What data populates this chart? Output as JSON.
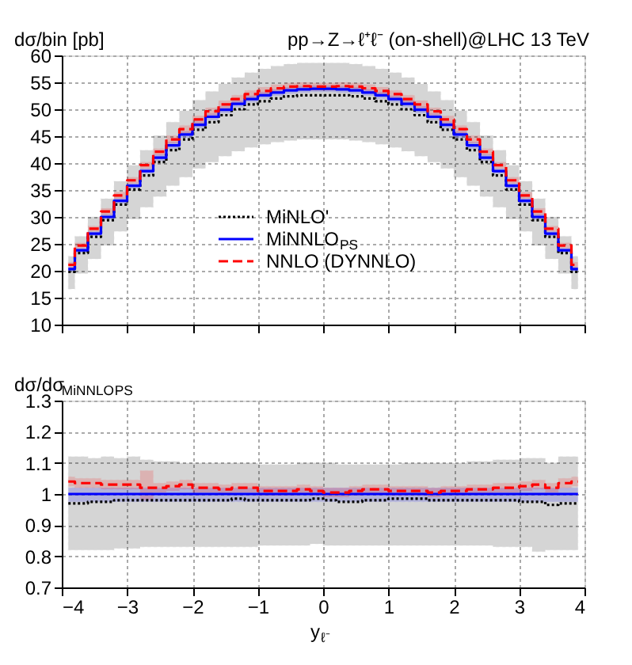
{
  "chart_data": [
    {
      "type": "step",
      "title": "pp→Z→ℓ⁺ℓ⁻ (on-shell)@LHC 13 TeV",
      "ylabel": "dσ/bin [pb]",
      "x": [
        -3.9,
        -3.7,
        -3.5,
        -3.3,
        -3.1,
        -2.9,
        -2.7,
        -2.5,
        -2.3,
        -2.1,
        -1.9,
        -1.7,
        -1.5,
        -1.3,
        -1.1,
        -0.9,
        -0.7,
        -0.5,
        -0.3,
        -0.1,
        0.1,
        0.3,
        0.5,
        0.7,
        0.9,
        1.1,
        1.3,
        1.5,
        1.7,
        1.9,
        2.1,
        2.3,
        2.5,
        2.7,
        2.9,
        3.1,
        3.3,
        3.5,
        3.7,
        3.9
      ],
      "xlim": [
        -4,
        4
      ],
      "xticks": [
        -4,
        -3,
        -2,
        -1,
        0,
        1,
        2,
        3,
        4
      ],
      "ylim": [
        10,
        60
      ],
      "yticks": [
        10,
        15,
        20,
        25,
        30,
        35,
        40,
        45,
        50,
        55,
        60
      ],
      "grid": true,
      "tick_labels": "y",
      "legend": "center",
      "marker": "none",
      "series": [
        {
          "name": "MiNLO'",
          "color": "#000000",
          "line_style": "dotted",
          "values": [
            19.8,
            23.3,
            26.3,
            29.4,
            32.3,
            35.1,
            37.7,
            40.2,
            42.4,
            44.4,
            46.2,
            47.6,
            48.9,
            50.0,
            50.9,
            51.5,
            52.0,
            52.4,
            52.6,
            52.6,
            52.6,
            52.6,
            52.4,
            52.0,
            51.5,
            50.9,
            50.0,
            48.9,
            47.6,
            46.2,
            44.4,
            42.4,
            40.2,
            37.7,
            35.1,
            32.3,
            29.4,
            26.3,
            23.3,
            19.8
          ],
          "lower": [
            16.6,
            19.5,
            22.2,
            24.7,
            27.3,
            29.6,
            31.8,
            33.8,
            35.8,
            37.4,
            39.0,
            40.2,
            41.3,
            42.2,
            42.9,
            43.5,
            43.9,
            44.2,
            44.4,
            44.4,
            44.4,
            44.4,
            44.2,
            43.9,
            43.5,
            42.9,
            42.2,
            41.3,
            40.2,
            39.0,
            37.4,
            35.8,
            33.8,
            31.8,
            29.6,
            27.3,
            24.7,
            22.2,
            19.5,
            16.6
          ],
          "upper": [
            22.7,
            26.4,
            30.0,
            33.4,
            36.6,
            39.6,
            42.4,
            45.1,
            47.6,
            49.7,
            51.7,
            53.3,
            54.7,
            55.9,
            56.8,
            57.5,
            58.0,
            58.4,
            58.6,
            58.6,
            58.6,
            58.6,
            58.4,
            58.0,
            57.5,
            56.8,
            55.9,
            54.7,
            53.3,
            51.7,
            49.7,
            47.6,
            45.1,
            42.4,
            39.6,
            36.6,
            33.4,
            30.0,
            26.4,
            22.7
          ]
        },
        {
          "name": "MiNNLO$_{PS}$",
          "color": "#0000ff",
          "line_style": "solid",
          "values": [
            20.3,
            23.8,
            26.9,
            30.0,
            33.0,
            35.8,
            38.5,
            41.0,
            43.3,
            45.3,
            47.1,
            48.6,
            49.9,
            51.0,
            51.9,
            52.6,
            53.1,
            53.5,
            53.7,
            53.8,
            53.8,
            53.7,
            53.5,
            53.1,
            52.6,
            51.9,
            51.0,
            49.9,
            48.6,
            47.1,
            45.3,
            43.3,
            41.0,
            38.5,
            35.8,
            33.0,
            30.0,
            26.9,
            23.8,
            20.3
          ],
          "lower": [
            19.9,
            23.4,
            26.5,
            29.5,
            32.5,
            35.3,
            38.0,
            40.4,
            42.7,
            44.7,
            46.5,
            48.0,
            49.3,
            50.4,
            51.3,
            52.0,
            52.5,
            52.9,
            53.1,
            53.2,
            53.2,
            53.1,
            52.9,
            52.5,
            52.0,
            51.3,
            50.4,
            49.3,
            48.0,
            46.5,
            44.7,
            42.7,
            40.4,
            38.0,
            35.3,
            32.5,
            29.5,
            26.5,
            23.4,
            19.9
          ],
          "upper": [
            20.7,
            24.2,
            27.3,
            30.5,
            33.5,
            36.3,
            39.0,
            41.6,
            43.9,
            45.9,
            47.7,
            49.2,
            50.5,
            51.6,
            52.5,
            53.2,
            53.7,
            54.1,
            54.3,
            54.4,
            54.4,
            54.3,
            54.1,
            53.7,
            53.2,
            52.5,
            51.6,
            50.5,
            49.2,
            47.7,
            45.9,
            43.9,
            41.6,
            39.0,
            36.3,
            33.5,
            30.5,
            27.3,
            24.2,
            20.7
          ]
        },
        {
          "name": "NNLO (DYNNLO)",
          "color": "#ff0000",
          "line_style": "dashed",
          "values": [
            21.1,
            24.7,
            27.8,
            31.0,
            34.0,
            36.8,
            39.6,
            42.1,
            44.4,
            46.3,
            48.1,
            49.6,
            50.9,
            51.9,
            52.8,
            53.4,
            53.9,
            54.2,
            54.3,
            54.2,
            54.2,
            54.3,
            54.2,
            53.9,
            53.4,
            52.8,
            51.9,
            50.9,
            49.6,
            48.1,
            46.3,
            44.4,
            42.1,
            39.6,
            36.8,
            34.0,
            31.0,
            27.8,
            24.7,
            21.1
          ],
          "lower": [
            20.6,
            24.2,
            27.3,
            30.4,
            33.4,
            36.2,
            39.0,
            41.5,
            43.7,
            45.6,
            47.4,
            48.9,
            50.2,
            51.2,
            52.1,
            52.7,
            53.2,
            53.5,
            53.6,
            53.5,
            53.5,
            53.6,
            53.5,
            53.2,
            52.7,
            52.1,
            51.2,
            50.2,
            48.9,
            47.4,
            45.6,
            43.7,
            41.5,
            39.0,
            36.2,
            33.4,
            30.4,
            27.3,
            24.2,
            20.6
          ],
          "upper": [
            21.6,
            25.2,
            28.3,
            31.6,
            34.6,
            37.4,
            40.2,
            42.7,
            45.1,
            47.0,
            48.8,
            50.3,
            51.6,
            52.6,
            53.5,
            54.1,
            54.6,
            54.9,
            55.0,
            54.9,
            54.9,
            55.0,
            54.9,
            54.6,
            54.1,
            53.5,
            52.6,
            51.6,
            50.3,
            48.8,
            47.0,
            45.1,
            42.7,
            40.2,
            37.4,
            34.6,
            31.6,
            28.3,
            25.2,
            21.6
          ]
        }
      ]
    },
    {
      "type": "step",
      "ylabel": "dσ/dσ$_{MiNNLO}$$_{PS}$",
      "xlabel": "y$_{ℓ⁻}$",
      "x": [
        -3.9,
        -3.7,
        -3.5,
        -3.3,
        -3.1,
        -2.9,
        -2.7,
        -2.5,
        -2.3,
        -2.1,
        -1.9,
        -1.7,
        -1.5,
        -1.3,
        -1.1,
        -0.9,
        -0.7,
        -0.5,
        -0.3,
        -0.1,
        0.1,
        0.3,
        0.5,
        0.7,
        0.9,
        1.1,
        1.3,
        1.5,
        1.7,
        1.9,
        2.1,
        2.3,
        2.5,
        2.7,
        2.9,
        3.1,
        3.3,
        3.5,
        3.7,
        3.9
      ],
      "xlim": [
        -4,
        4
      ],
      "xticks": [
        -4,
        -3,
        -2,
        -1,
        0,
        1,
        2,
        3,
        4
      ],
      "ylim": [
        0.7,
        1.3
      ],
      "yticks": [
        0.7,
        0.8,
        0.9,
        1,
        1.1,
        1.2,
        1.3
      ],
      "grid": true,
      "marker": "none",
      "series": [
        {
          "color": "#000000",
          "line_style": "dotted",
          "values": [
            0.97,
            0.97,
            0.975,
            0.975,
            0.98,
            0.98,
            0.98,
            0.98,
            0.98,
            0.98,
            0.98,
            0.98,
            0.98,
            0.985,
            0.98,
            0.98,
            0.98,
            0.98,
            0.98,
            0.985,
            0.98,
            0.975,
            0.975,
            0.98,
            0.98,
            0.985,
            0.985,
            0.985,
            0.98,
            0.98,
            0.98,
            0.98,
            0.98,
            0.98,
            0.98,
            0.975,
            0.975,
            0.965,
            0.97,
            0.97
          ],
          "lower": [
            0.82,
            0.82,
            0.82,
            0.82,
            0.825,
            0.825,
            0.83,
            0.83,
            0.83,
            0.83,
            0.83,
            0.83,
            0.83,
            0.83,
            0.83,
            0.835,
            0.835,
            0.835,
            0.835,
            0.84,
            0.835,
            0.835,
            0.835,
            0.835,
            0.835,
            0.835,
            0.835,
            0.835,
            0.835,
            0.835,
            0.835,
            0.835,
            0.835,
            0.83,
            0.83,
            0.83,
            0.815,
            0.82,
            0.82,
            0.82
          ],
          "upper": [
            1.12,
            1.12,
            1.115,
            1.12,
            1.115,
            1.12,
            1.11,
            1.105,
            1.105,
            1.1,
            1.1,
            1.1,
            1.1,
            1.1,
            1.1,
            1.095,
            1.095,
            1.095,
            1.1,
            1.1,
            1.1,
            1.095,
            1.095,
            1.095,
            1.095,
            1.095,
            1.1,
            1.1,
            1.1,
            1.1,
            1.1,
            1.105,
            1.105,
            1.11,
            1.11,
            1.115,
            1.115,
            1.1,
            1.12,
            1.12
          ]
        },
        {
          "color": "#0000ff",
          "line_style": "solid",
          "values": [
            1,
            1,
            1,
            1,
            1,
            1,
            1,
            1,
            1,
            1,
            1,
            1,
            1,
            1,
            1,
            1,
            1,
            1,
            1,
            1,
            1,
            1,
            1,
            1,
            1,
            1,
            1,
            1,
            1,
            1,
            1,
            1,
            1,
            1,
            1,
            1,
            1,
            1,
            1,
            1
          ],
          "lower": [
            0.975,
            0.975,
            0.975,
            0.975,
            0.975,
            0.975,
            0.975,
            0.975,
            0.975,
            0.975,
            0.975,
            0.975,
            0.975,
            0.975,
            0.975,
            0.975,
            0.975,
            0.975,
            0.975,
            0.975,
            0.975,
            0.975,
            0.975,
            0.975,
            0.975,
            0.975,
            0.975,
            0.975,
            0.975,
            0.975,
            0.975,
            0.975,
            0.975,
            0.975,
            0.975,
            0.975,
            0.975,
            0.975,
            0.975,
            0.975
          ],
          "upper": [
            1.02,
            1.02,
            1.02,
            1.02,
            1.02,
            1.02,
            1.02,
            1.02,
            1.02,
            1.02,
            1.02,
            1.02,
            1.02,
            1.02,
            1.02,
            1.02,
            1.02,
            1.02,
            1.02,
            1.02,
            1.02,
            1.02,
            1.02,
            1.02,
            1.02,
            1.02,
            1.02,
            1.02,
            1.02,
            1.02,
            1.02,
            1.02,
            1.02,
            1.02,
            1.02,
            1.02,
            1.02,
            1.02,
            1.02,
            1.02
          ]
        },
        {
          "color": "#ff0000",
          "line_style": "dashed",
          "values": [
            1.04,
            1.035,
            1.035,
            1.03,
            1.03,
            1.03,
            1.02,
            1.02,
            1.025,
            1.03,
            1.02,
            1.02,
            1.015,
            1.02,
            1.02,
            1.01,
            1.01,
            1.01,
            1.015,
            1.01,
            1.005,
            1.005,
            1.01,
            1.015,
            1.015,
            1.01,
            1.01,
            1.01,
            1.005,
            1.01,
            1.01,
            1.015,
            1.015,
            1.02,
            1.02,
            1.025,
            1.03,
            1.02,
            1.035,
            1.04
          ],
          "lower": [
            1.025,
            1.02,
            1.02,
            1.015,
            1.015,
            1.015,
            0.98,
            1.005,
            1.01,
            1.015,
            1.005,
            1.005,
            1.0,
            1.005,
            1.005,
            0.995,
            0.995,
            0.995,
            1.0,
            0.995,
            0.99,
            0.99,
            0.995,
            1.0,
            1.0,
            0.995,
            0.995,
            0.995,
            0.99,
            0.995,
            0.995,
            1.0,
            1.0,
            1.005,
            1.005,
            1.01,
            1.015,
            1.005,
            1.02,
            1.025
          ],
          "upper": [
            1.055,
            1.05,
            1.05,
            1.045,
            1.045,
            1.045,
            1.075,
            1.035,
            1.04,
            1.045,
            1.035,
            1.035,
            1.03,
            1.035,
            1.035,
            1.025,
            1.025,
            1.025,
            1.03,
            1.025,
            1.02,
            1.02,
            1.025,
            1.03,
            1.03,
            1.025,
            1.025,
            1.025,
            1.02,
            1.025,
            1.025,
            1.03,
            1.03,
            1.035,
            1.035,
            1.04,
            1.045,
            1.035,
            1.05,
            1.055
          ]
        }
      ]
    }
  ]
}
